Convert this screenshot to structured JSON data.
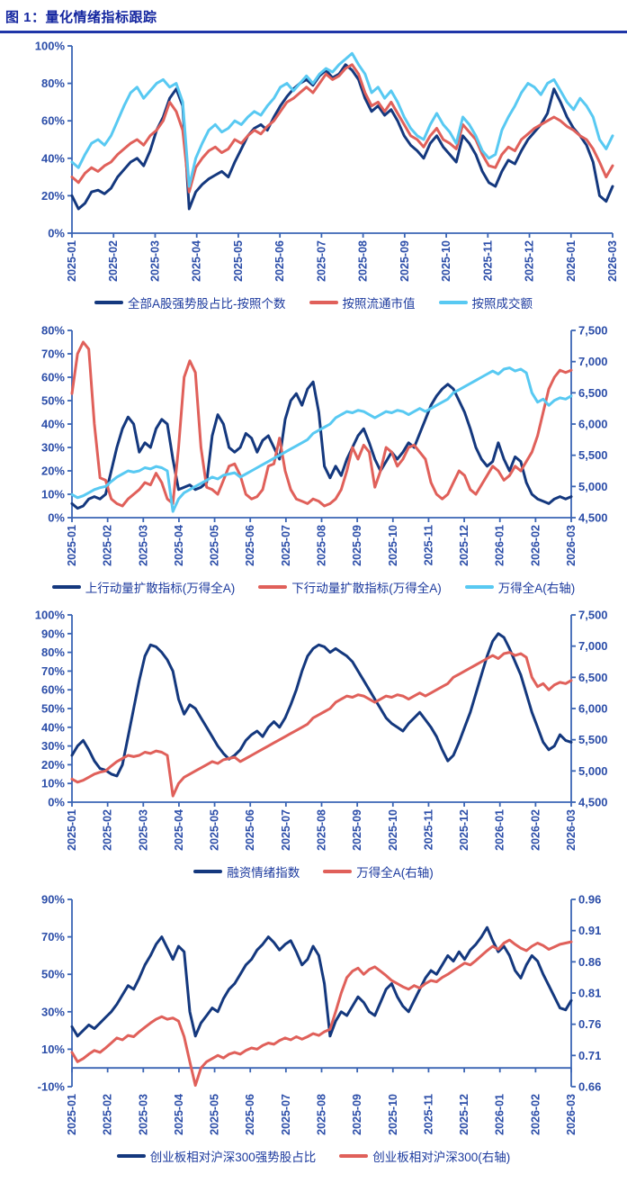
{
  "page": {
    "title": "图 1：量化情绪指标跟踪"
  },
  "colors": {
    "navy": "#14387E",
    "red": "#E0605A",
    "cyan": "#58C9F2",
    "axis": "#3A64B4",
    "label": "#2B4DA8",
    "title": "#1527A0",
    "underline": "#1F36A8"
  },
  "chart_data": [
    {
      "type": "line",
      "title": "",
      "x_labels": [
        "2025-01",
        "2025-02",
        "2025-03",
        "2025-04",
        "2025-05",
        "2025-06",
        "2025-07",
        "2025-08",
        "2025-09",
        "2025-10",
        "2025-11",
        "2025-12",
        "2026-01",
        "2026-03"
      ],
      "left_axis": {
        "range": [
          0,
          100
        ],
        "labels": [
          "0%",
          "20%",
          "40%",
          "60%",
          "80%",
          "100%"
        ]
      },
      "grid": false,
      "legend_position": "bottom",
      "series": [
        {
          "name": "全部A股强势股占比-按照个数",
          "color": "navy",
          "axis": "left",
          "values": [
            20,
            13,
            16,
            22,
            23,
            21,
            24,
            30,
            34,
            38,
            40,
            36,
            44,
            55,
            62,
            72,
            77,
            68,
            13,
            22,
            26,
            29,
            31,
            33,
            30,
            38,
            45,
            52,
            56,
            58,
            55,
            62,
            68,
            73,
            77,
            80,
            82,
            79,
            84,
            87,
            83,
            85,
            90,
            87,
            82,
            72,
            65,
            68,
            63,
            66,
            60,
            52,
            47,
            44,
            40,
            48,
            52,
            46,
            42,
            38,
            52,
            48,
            42,
            33,
            27,
            25,
            33,
            39,
            37,
            44,
            50,
            54,
            58,
            64,
            77,
            70,
            62,
            56,
            52,
            47,
            38,
            20,
            17,
            25
          ]
        },
        {
          "name": "按照流通市值",
          "color": "red",
          "axis": "left",
          "values": [
            30,
            27,
            32,
            35,
            33,
            36,
            38,
            42,
            45,
            48,
            50,
            47,
            52,
            55,
            60,
            70,
            65,
            55,
            22,
            35,
            40,
            44,
            46,
            43,
            45,
            50,
            48,
            52,
            55,
            53,
            57,
            60,
            65,
            70,
            72,
            75,
            78,
            75,
            80,
            85,
            82,
            84,
            88,
            90,
            85,
            75,
            68,
            70,
            65,
            70,
            64,
            58,
            52,
            50,
            46,
            52,
            56,
            50,
            48,
            45,
            58,
            54,
            50,
            42,
            36,
            35,
            42,
            46,
            44,
            50,
            53,
            56,
            58,
            60,
            62,
            60,
            57,
            55,
            52,
            50,
            45,
            38,
            30,
            36
          ]
        },
        {
          "name": "按照成交额",
          "color": "cyan",
          "axis": "left",
          "values": [
            38,
            35,
            42,
            48,
            50,
            47,
            52,
            60,
            68,
            75,
            78,
            72,
            76,
            80,
            82,
            78,
            80,
            70,
            25,
            40,
            48,
            55,
            58,
            54,
            56,
            60,
            58,
            62,
            65,
            63,
            68,
            72,
            78,
            80,
            76,
            80,
            84,
            80,
            85,
            88,
            86,
            90,
            93,
            96,
            90,
            85,
            75,
            78,
            72,
            76,
            70,
            62,
            56,
            52,
            50,
            58,
            64,
            58,
            54,
            48,
            62,
            58,
            52,
            44,
            40,
            42,
            55,
            62,
            68,
            75,
            80,
            78,
            74,
            80,
            82,
            76,
            70,
            66,
            72,
            68,
            62,
            50,
            45,
            52
          ]
        }
      ]
    },
    {
      "type": "line",
      "title": "",
      "x_labels": [
        "2025-01",
        "2025-02",
        "2025-03",
        "2025-04",
        "2025-05",
        "2025-06",
        "2025-07",
        "2025-08",
        "2025-09",
        "2025-10",
        "2025-11",
        "2025-12",
        "2026-01",
        "2026-02",
        "2026-03"
      ],
      "left_axis": {
        "range": [
          0,
          80
        ],
        "labels": [
          "0%",
          "10%",
          "20%",
          "30%",
          "40%",
          "50%",
          "60%",
          "70%",
          "80%"
        ]
      },
      "right_axis": {
        "range": [
          4500,
          7500
        ],
        "labels": [
          "4,500",
          "5,000",
          "5,500",
          "6,000",
          "6,500",
          "7,000",
          "7,500"
        ]
      },
      "grid": false,
      "legend_position": "bottom",
      "series": [
        {
          "name": "上行动量扩散指标(万得全A)",
          "color": "navy",
          "axis": "left",
          "values": [
            6,
            4,
            5,
            8,
            9,
            8,
            10,
            20,
            30,
            38,
            43,
            40,
            28,
            32,
            30,
            38,
            42,
            40,
            25,
            12,
            13,
            14,
            12,
            13,
            15,
            35,
            44,
            40,
            30,
            28,
            30,
            36,
            34,
            28,
            33,
            35,
            30,
            25,
            42,
            50,
            53,
            48,
            55,
            58,
            45,
            22,
            17,
            22,
            18,
            25,
            30,
            35,
            38,
            32,
            25,
            20,
            24,
            28,
            25,
            28,
            32,
            30,
            36,
            42,
            48,
            52,
            55,
            57,
            55,
            50,
            45,
            38,
            30,
            25,
            22,
            24,
            32,
            25,
            20,
            26,
            24,
            15,
            10,
            8,
            7,
            6,
            8,
            9,
            8,
            9
          ]
        },
        {
          "name": "下行动量扩散指标(万得全A)",
          "color": "red",
          "axis": "left",
          "values": [
            53,
            70,
            75,
            72,
            40,
            17,
            16,
            8,
            6,
            5,
            8,
            10,
            12,
            15,
            14,
            19,
            15,
            8,
            6,
            30,
            60,
            67,
            62,
            30,
            13,
            12,
            10,
            16,
            22,
            23,
            18,
            10,
            8,
            9,
            12,
            22,
            23,
            34,
            20,
            12,
            8,
            7,
            6,
            8,
            7,
            5,
            6,
            8,
            12,
            20,
            30,
            25,
            31,
            28,
            13,
            20,
            30,
            28,
            22,
            25,
            30,
            31,
            28,
            25,
            15,
            10,
            8,
            10,
            15,
            20,
            18,
            12,
            10,
            14,
            18,
            22,
            20,
            16,
            18,
            22,
            20,
            24,
            28,
            35,
            45,
            55,
            60,
            63,
            62,
            63
          ]
        },
        {
          "name": "万得全A(右轴)",
          "color": "cyan",
          "axis": "right",
          "values": [
            4870,
            4820,
            4850,
            4900,
            4950,
            4980,
            5000,
            5080,
            5150,
            5200,
            5250,
            5230,
            5250,
            5300,
            5280,
            5320,
            5300,
            5250,
            4600,
            4800,
            4900,
            4950,
            5000,
            5050,
            5100,
            5150,
            5120,
            5180,
            5200,
            5220,
            5150,
            5200,
            5250,
            5300,
            5350,
            5400,
            5450,
            5500,
            5550,
            5600,
            5650,
            5700,
            5750,
            5850,
            5900,
            5950,
            6000,
            6100,
            6150,
            6200,
            6180,
            6220,
            6200,
            6150,
            6100,
            6150,
            6200,
            6180,
            6220,
            6200,
            6150,
            6200,
            6250,
            6200,
            6250,
            6300,
            6350,
            6400,
            6500,
            6550,
            6600,
            6650,
            6700,
            6750,
            6800,
            6850,
            6800,
            6880,
            6900,
            6850,
            6880,
            6820,
            6500,
            6350,
            6400,
            6300,
            6380,
            6420,
            6400,
            6450
          ]
        }
      ]
    },
    {
      "type": "line",
      "title": "",
      "x_labels": [
        "2025-01",
        "2025-02",
        "2025-03",
        "2025-04",
        "2025-05",
        "2025-06",
        "2025-07",
        "2025-08",
        "2025-09",
        "2025-10",
        "2025-11",
        "2025-12",
        "2026-01",
        "2026-02",
        "2026-03"
      ],
      "left_axis": {
        "range": [
          0,
          100
        ],
        "labels": [
          "0%",
          "10%",
          "20%",
          "30%",
          "40%",
          "50%",
          "60%",
          "70%",
          "80%",
          "90%",
          "100%"
        ]
      },
      "right_axis": {
        "range": [
          4500,
          7500
        ],
        "labels": [
          "4,500",
          "5,000",
          "5,500",
          "6,000",
          "6,500",
          "7,000",
          "7,500"
        ]
      },
      "grid": false,
      "legend_position": "bottom",
      "series": [
        {
          "name": "融资情绪指数",
          "color": "navy",
          "axis": "left",
          "values": [
            25,
            30,
            33,
            28,
            22,
            18,
            17,
            15,
            14,
            20,
            35,
            50,
            65,
            78,
            84,
            83,
            80,
            76,
            70,
            55,
            47,
            52,
            50,
            45,
            40,
            35,
            30,
            26,
            23,
            25,
            28,
            33,
            36,
            38,
            35,
            40,
            43,
            40,
            45,
            52,
            60,
            70,
            78,
            82,
            84,
            83,
            80,
            82,
            80,
            78,
            75,
            70,
            65,
            60,
            55,
            50,
            45,
            42,
            40,
            38,
            42,
            45,
            48,
            44,
            40,
            35,
            28,
            22,
            25,
            32,
            40,
            48,
            58,
            68,
            78,
            86,
            90,
            88,
            82,
            75,
            68,
            58,
            48,
            40,
            32,
            28,
            30,
            36,
            33,
            32
          ]
        },
        {
          "name": "万得全A(右轴)",
          "color": "red",
          "axis": "right",
          "values": [
            4870,
            4820,
            4850,
            4900,
            4950,
            4980,
            5000,
            5080,
            5150,
            5200,
            5250,
            5230,
            5250,
            5300,
            5280,
            5320,
            5300,
            5250,
            4600,
            4800,
            4900,
            4950,
            5000,
            5050,
            5100,
            5150,
            5120,
            5180,
            5200,
            5220,
            5150,
            5200,
            5250,
            5300,
            5350,
            5400,
            5450,
            5500,
            5550,
            5600,
            5650,
            5700,
            5750,
            5850,
            5900,
            5950,
            6000,
            6100,
            6150,
            6200,
            6180,
            6220,
            6200,
            6150,
            6100,
            6150,
            6200,
            6180,
            6220,
            6200,
            6150,
            6200,
            6250,
            6200,
            6250,
            6300,
            6350,
            6400,
            6500,
            6550,
            6600,
            6650,
            6700,
            6750,
            6800,
            6850,
            6800,
            6880,
            6900,
            6850,
            6880,
            6820,
            6500,
            6350,
            6400,
            6300,
            6380,
            6420,
            6400,
            6450
          ]
        }
      ]
    },
    {
      "type": "line",
      "title": "",
      "x_labels": [
        "2025-01",
        "2025-02",
        "2025-03",
        "2025-04",
        "2025-05",
        "2025-06",
        "2025-07",
        "2025-08",
        "2025-09",
        "2025-10",
        "2025-11",
        "2025-12",
        "2026-01",
        "2026-02",
        "2026-03"
      ],
      "left_axis": {
        "range": [
          -10,
          90
        ],
        "labels": [
          "-10%",
          "10%",
          "30%",
          "50%",
          "70%",
          "90%"
        ]
      },
      "right_axis": {
        "range": [
          0.66,
          0.96
        ],
        "labels": [
          "0.66",
          "0.71",
          "0.76",
          "0.81",
          "0.86",
          "0.91",
          "0.96"
        ]
      },
      "x_axis_at": 0,
      "grid": false,
      "legend_position": "bottom",
      "series": [
        {
          "name": "创业板相对沪深300强势股占比",
          "color": "navy",
          "axis": "left",
          "values": [
            22,
            17,
            20,
            23,
            21,
            24,
            27,
            30,
            34,
            39,
            44,
            42,
            48,
            55,
            60,
            66,
            70,
            64,
            58,
            65,
            62,
            30,
            17,
            24,
            28,
            32,
            30,
            37,
            42,
            45,
            50,
            55,
            58,
            63,
            66,
            70,
            67,
            63,
            66,
            68,
            62,
            55,
            58,
            65,
            60,
            45,
            17,
            25,
            30,
            28,
            33,
            38,
            35,
            30,
            28,
            35,
            42,
            45,
            38,
            33,
            30,
            36,
            42,
            48,
            52,
            50,
            55,
            60,
            57,
            62,
            58,
            63,
            66,
            70,
            75,
            68,
            62,
            65,
            60,
            52,
            48,
            55,
            60,
            57,
            50,
            44,
            38,
            32,
            31,
            36
          ]
        },
        {
          "name": "创业板相对沪深300(右轴)",
          "color": "red",
          "axis": "right",
          "values": [
            0.715,
            0.7,
            0.705,
            0.712,
            0.718,
            0.715,
            0.722,
            0.73,
            0.738,
            0.735,
            0.742,
            0.74,
            0.748,
            0.755,
            0.762,
            0.768,
            0.772,
            0.768,
            0.77,
            0.765,
            0.74,
            0.7,
            0.662,
            0.69,
            0.7,
            0.705,
            0.71,
            0.706,
            0.712,
            0.715,
            0.712,
            0.718,
            0.722,
            0.72,
            0.726,
            0.73,
            0.728,
            0.734,
            0.738,
            0.735,
            0.74,
            0.736,
            0.74,
            0.745,
            0.742,
            0.748,
            0.752,
            0.78,
            0.81,
            0.835,
            0.845,
            0.85,
            0.84,
            0.848,
            0.852,
            0.845,
            0.838,
            0.83,
            0.825,
            0.82,
            0.816,
            0.822,
            0.818,
            0.825,
            0.83,
            0.828,
            0.835,
            0.84,
            0.846,
            0.852,
            0.858,
            0.855,
            0.862,
            0.87,
            0.878,
            0.885,
            0.88,
            0.89,
            0.895,
            0.888,
            0.882,
            0.878,
            0.885,
            0.89,
            0.886,
            0.88,
            0.884,
            0.888,
            0.89,
            0.892
          ]
        }
      ]
    }
  ]
}
